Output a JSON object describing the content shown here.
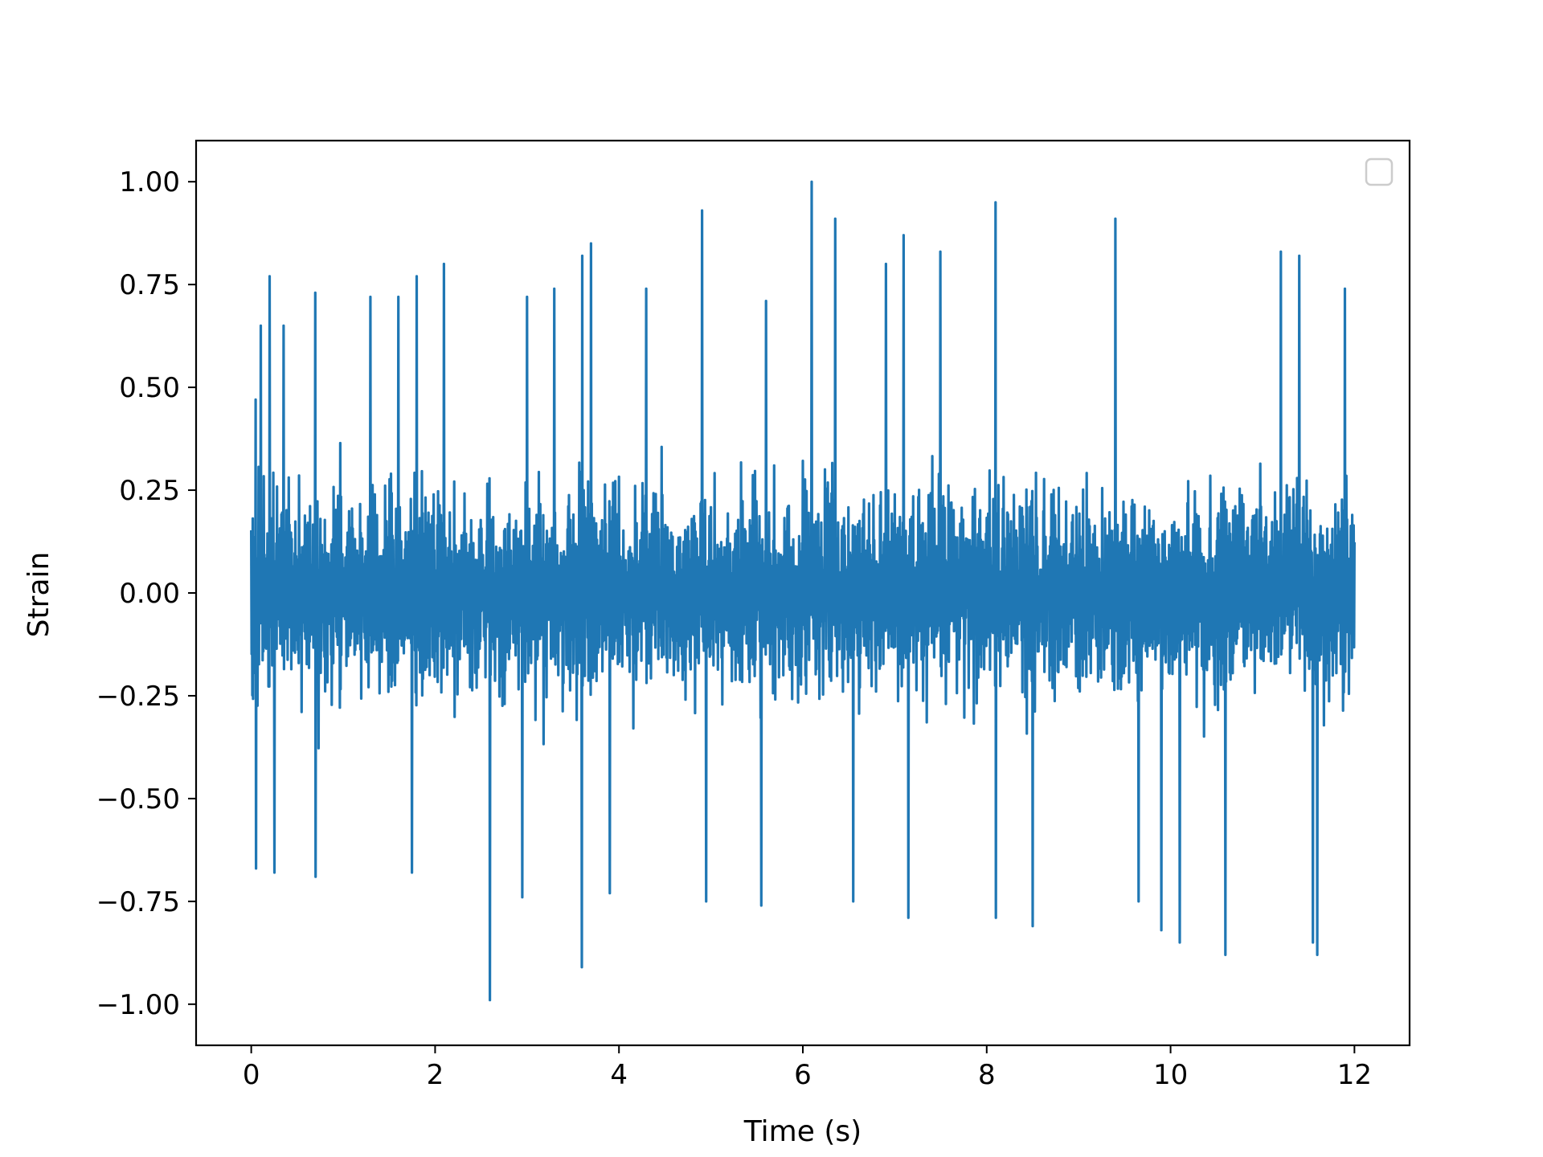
{
  "chart_data": {
    "type": "line",
    "title": "",
    "xlabel": "Time (s)",
    "ylabel": "Strain",
    "xlim": [
      -0.6,
      12.6
    ],
    "ylim": [
      -1.1,
      1.1
    ],
    "x_ticks": [
      0,
      2,
      4,
      6,
      8,
      10,
      12
    ],
    "x_tick_labels": [
      "0",
      "2",
      "4",
      "6",
      "8",
      "10",
      "12"
    ],
    "y_ticks": [
      1.0,
      0.75,
      0.5,
      0.25,
      0.0,
      -0.25,
      -0.5,
      -0.75,
      -1.0
    ],
    "y_tick_labels": [
      "1.00",
      "0.75",
      "0.50",
      "0.25",
      "0.00",
      "−0.25",
      "−0.50",
      "−0.75",
      "−1.00"
    ],
    "grid": false,
    "legend": "top-right (empty)",
    "series": [
      {
        "color": "#1f77b4",
        "x_range": [
          0,
          12
        ],
        "band_typical": [
          -0.45,
          0.45
        ],
        "peaks": [
          {
            "x": 0.05,
            "y": 0.47
          },
          {
            "x": 0.1,
            "y": 0.65
          },
          {
            "x": 0.2,
            "y": 0.77
          },
          {
            "x": 0.35,
            "y": 0.65
          },
          {
            "x": 0.7,
            "y": 0.73
          },
          {
            "x": 1.3,
            "y": 0.72
          },
          {
            "x": 1.6,
            "y": 0.72
          },
          {
            "x": 1.8,
            "y": 0.77
          },
          {
            "x": 2.1,
            "y": 0.8
          },
          {
            "x": 3.0,
            "y": 0.72
          },
          {
            "x": 3.3,
            "y": 0.74
          },
          {
            "x": 3.6,
            "y": 0.82
          },
          {
            "x": 3.7,
            "y": 0.85
          },
          {
            "x": 4.3,
            "y": 0.74
          },
          {
            "x": 4.9,
            "y": 0.93
          },
          {
            "x": 5.6,
            "y": 0.71
          },
          {
            "x": 6.1,
            "y": 1.0
          },
          {
            "x": 6.35,
            "y": 0.91
          },
          {
            "x": 6.9,
            "y": 0.8
          },
          {
            "x": 7.1,
            "y": 0.87
          },
          {
            "x": 7.5,
            "y": 0.83
          },
          {
            "x": 8.1,
            "y": 0.95
          },
          {
            "x": 9.4,
            "y": 0.91
          },
          {
            "x": 11.2,
            "y": 0.83
          },
          {
            "x": 11.4,
            "y": 0.82
          },
          {
            "x": 11.9,
            "y": 0.74
          }
        ],
        "troughs": [
          {
            "x": 0.05,
            "y": -0.67
          },
          {
            "x": 0.25,
            "y": -0.68
          },
          {
            "x": 0.7,
            "y": -0.69
          },
          {
            "x": 1.75,
            "y": -0.68
          },
          {
            "x": 2.6,
            "y": -0.99
          },
          {
            "x": 2.95,
            "y": -0.74
          },
          {
            "x": 3.6,
            "y": -0.91
          },
          {
            "x": 3.9,
            "y": -0.73
          },
          {
            "x": 4.95,
            "y": -0.75
          },
          {
            "x": 5.55,
            "y": -0.76
          },
          {
            "x": 6.55,
            "y": -0.75
          },
          {
            "x": 7.15,
            "y": -0.79
          },
          {
            "x": 8.1,
            "y": -0.79
          },
          {
            "x": 8.5,
            "y": -0.81
          },
          {
            "x": 9.65,
            "y": -0.75
          },
          {
            "x": 9.9,
            "y": -0.82
          },
          {
            "x": 10.1,
            "y": -0.85
          },
          {
            "x": 10.6,
            "y": -0.88
          },
          {
            "x": 11.55,
            "y": -0.85
          },
          {
            "x": 11.6,
            "y": -0.88
          }
        ]
      }
    ]
  }
}
